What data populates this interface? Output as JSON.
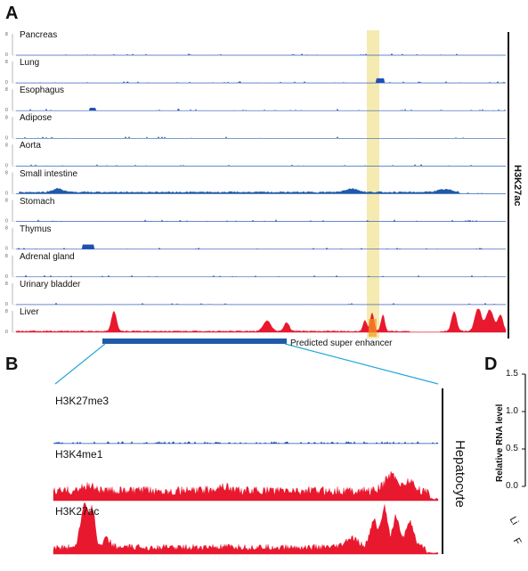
{
  "panels": {
    "a": "A",
    "b": "B",
    "d": "D"
  },
  "panel_a": {
    "scale_max": "8",
    "scale_min": "0",
    "tracks": [
      {
        "label": "Pancreas",
        "color": "#1f4fb0",
        "kind": "flat"
      },
      {
        "label": "Lung",
        "color": "#1f4fb0",
        "kind": "flat"
      },
      {
        "label": "Esophagus",
        "color": "#1f4fb0",
        "kind": "flat"
      },
      {
        "label": "Adipose",
        "color": "#1f4fb0",
        "kind": "flat"
      },
      {
        "label": "Aorta",
        "color": "#1f4fb0",
        "kind": "flat"
      },
      {
        "label": "Small intestine",
        "color": "#1f5aa8",
        "kind": "small"
      },
      {
        "label": "Stomach",
        "color": "#1f4fb0",
        "kind": "flat"
      },
      {
        "label": "Thymus",
        "color": "#1f4fb0",
        "kind": "flat"
      },
      {
        "label": "Adrenal gland",
        "color": "#1f4fb0",
        "kind": "flat"
      },
      {
        "label": "Urinary bladder",
        "color": "#1f4fb0",
        "kind": "flat"
      },
      {
        "label": "Liver",
        "color": "#e8182e",
        "kind": "liver"
      }
    ],
    "side_label": "H3K27ac",
    "highlight_color": "#f5eab0",
    "enhancer_bar_color": "#1f5aa8",
    "enhancer_label": "Predicted super enhancer"
  },
  "panel_b": {
    "tracks": [
      {
        "label": "H3K27me3",
        "color": "#1f4fb0",
        "kind": "flat"
      },
      {
        "label": "H3K4me1",
        "color": "#e8182e",
        "kind": "me1"
      },
      {
        "label": "H3K27ac",
        "color": "#e8182e",
        "kind": "ac"
      }
    ],
    "side_label": "Hepatocyte"
  },
  "panel_d": {
    "ylabel": "Relative RNA level",
    "ticks": [
      "1.5",
      "1.0",
      "0.5",
      "0.0"
    ],
    "xlabels": [
      "Li",
      "F"
    ]
  },
  "colors": {
    "connector": "#29a8d8"
  }
}
